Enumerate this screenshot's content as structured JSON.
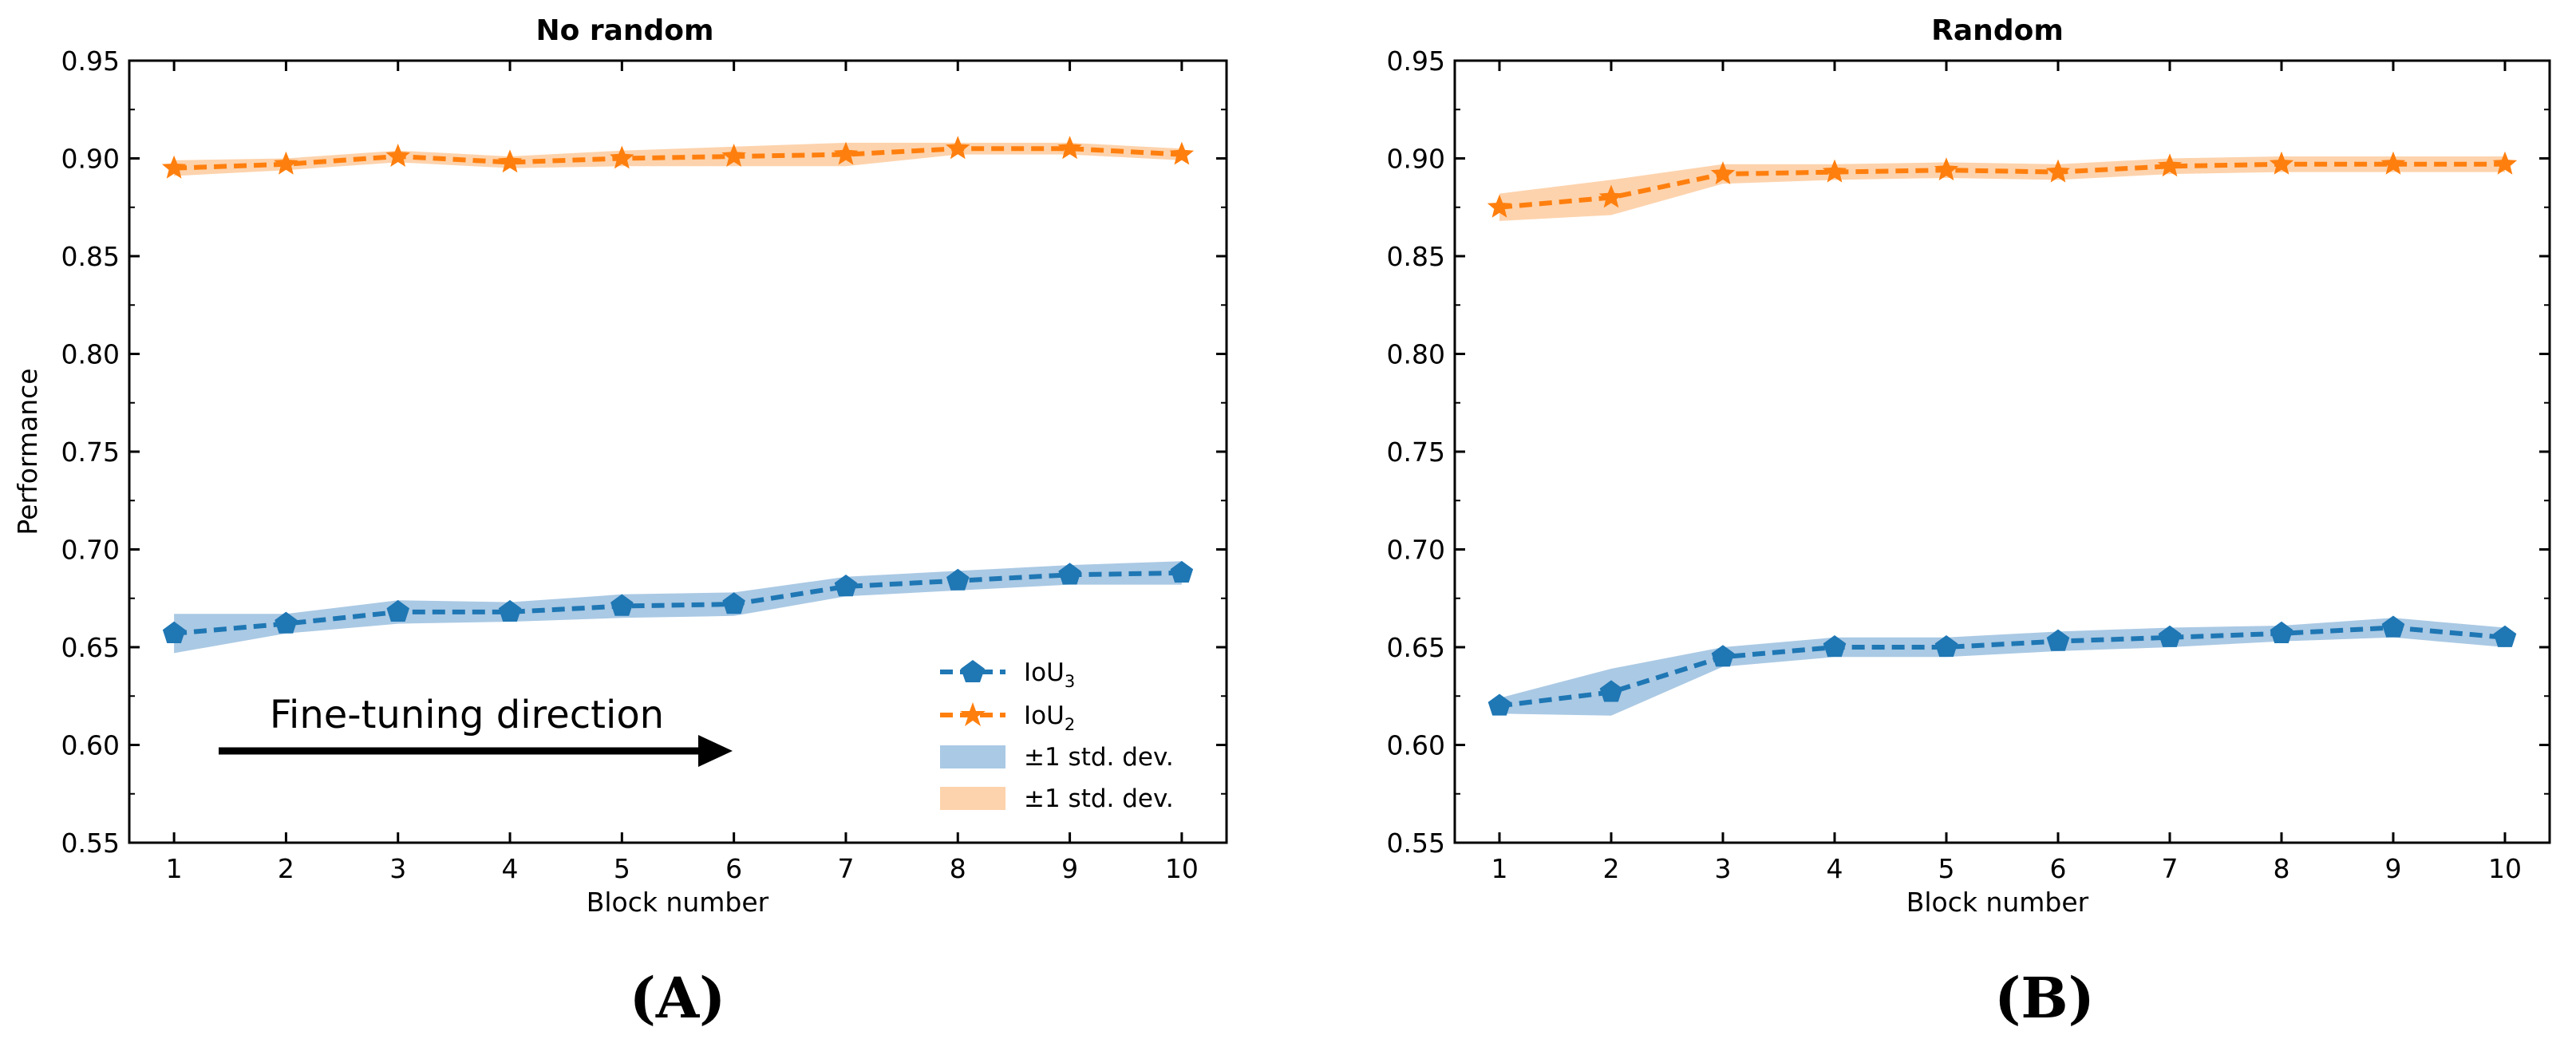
{
  "charts": [
    {
      "panel_label": "(A)",
      "title": "No random",
      "xlabel": "Block number",
      "ylabel": "Performance",
      "annotation": "Fine-tuning direction"
    },
    {
      "panel_label": "(B)",
      "title": "Random",
      "xlabel": "Block number",
      "ylabel": "",
      "annotation": ""
    }
  ],
  "legend": {
    "iou3": "IoU",
    "iou3_sub": "3",
    "iou2": "IoU",
    "iou2_sub": "2",
    "std1": "±1 std. dev.",
    "std2": "±1 std. dev."
  },
  "colors": {
    "blue": "#1f77b4",
    "orange": "#ff7f0e",
    "blue_band": "#aac9e4",
    "orange_band": "#fdd3ad"
  },
  "chart_data": [
    {
      "type": "line",
      "title": "No random",
      "xlabel": "Block number",
      "ylabel": "Performance",
      "x": [
        1,
        2,
        3,
        4,
        5,
        6,
        7,
        8,
        9,
        10
      ],
      "xlim": [
        0.6,
        10.4
      ],
      "ylim": [
        0.55,
        0.95
      ],
      "yticks": [
        0.55,
        0.6,
        0.65,
        0.7,
        0.75,
        0.8,
        0.85,
        0.9,
        0.95
      ],
      "ytick_labels": [
        "0.55",
        "0.60",
        "0.65",
        "0.70",
        "0.75",
        "0.80",
        "0.85",
        "0.90",
        "0.95"
      ],
      "series": [
        {
          "name": "IoU3",
          "color": "#1f77b4",
          "marker": "pentagon",
          "values": [
            0.657,
            0.662,
            0.668,
            0.668,
            0.671,
            0.672,
            0.681,
            0.684,
            0.687,
            0.688
          ],
          "std": [
            0.01,
            0.005,
            0.006,
            0.005,
            0.006,
            0.006,
            0.005,
            0.005,
            0.005,
            0.006
          ]
        },
        {
          "name": "IoU2",
          "color": "#ff7f0e",
          "marker": "star",
          "values": [
            0.895,
            0.897,
            0.901,
            0.898,
            0.9,
            0.901,
            0.902,
            0.905,
            0.905,
            0.902
          ],
          "std": [
            0.004,
            0.003,
            0.003,
            0.003,
            0.004,
            0.005,
            0.006,
            0.003,
            0.003,
            0.003
          ]
        }
      ],
      "legend_position": "lower right",
      "grid": false
    },
    {
      "type": "line",
      "title": "Random",
      "xlabel": "Block number",
      "x": [
        1,
        2,
        3,
        4,
        5,
        6,
        7,
        8,
        9,
        10
      ],
      "xlim": [
        0.6,
        10.4
      ],
      "ylim": [
        0.55,
        0.95
      ],
      "yticks": [
        0.55,
        0.6,
        0.65,
        0.7,
        0.75,
        0.8,
        0.85,
        0.9,
        0.95
      ],
      "ytick_labels": [
        "0.55",
        "0.60",
        "0.65",
        "0.70",
        "0.75",
        "0.80",
        "0.85",
        "0.90",
        "0.95"
      ],
      "series": [
        {
          "name": "IoU3",
          "color": "#1f77b4",
          "marker": "pentagon",
          "values": [
            0.62,
            0.627,
            0.645,
            0.65,
            0.65,
            0.653,
            0.655,
            0.657,
            0.66,
            0.655
          ],
          "std": [
            0.004,
            0.012,
            0.005,
            0.005,
            0.005,
            0.005,
            0.005,
            0.004,
            0.005,
            0.005
          ]
        },
        {
          "name": "IoU2",
          "color": "#ff7f0e",
          "marker": "star",
          "values": [
            0.875,
            0.88,
            0.892,
            0.893,
            0.894,
            0.893,
            0.896,
            0.897,
            0.897,
            0.897
          ],
          "std": [
            0.007,
            0.009,
            0.005,
            0.004,
            0.004,
            0.004,
            0.004,
            0.004,
            0.004,
            0.004
          ]
        }
      ],
      "grid": false
    }
  ]
}
